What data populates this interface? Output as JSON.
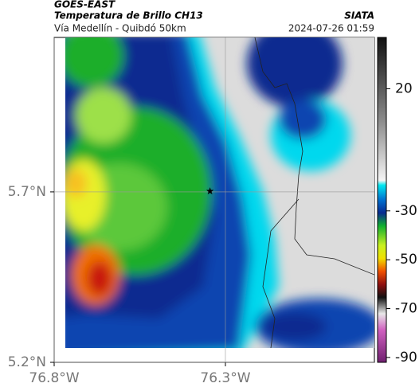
{
  "header": {
    "source": "GOES-EAST",
    "product": "Temperatura de Brillo CH13",
    "agency": "SIATA",
    "route": "Vía Medellín - Quibdó 50km",
    "datetime": "2024-07-26 01:59"
  },
  "map": {
    "xlim": [
      -76.8,
      -75.865
    ],
    "ylim": [
      5.2,
      6.153
    ],
    "xticks": [
      {
        "value": -76.8,
        "label": "76.8°W"
      },
      {
        "value": -76.3,
        "label": "76.3°W"
      }
    ],
    "yticks": [
      {
        "value": 5.2,
        "label": "5.2°N"
      },
      {
        "value": 5.7,
        "label": "5.7°N"
      }
    ],
    "grid": true,
    "station": {
      "x": -76.345,
      "y": 5.702
    }
  },
  "colorbar": {
    "clim": [
      -92,
      41
    ],
    "ticks": [
      20,
      -30,
      -50,
      -70,
      -90
    ]
  }
}
